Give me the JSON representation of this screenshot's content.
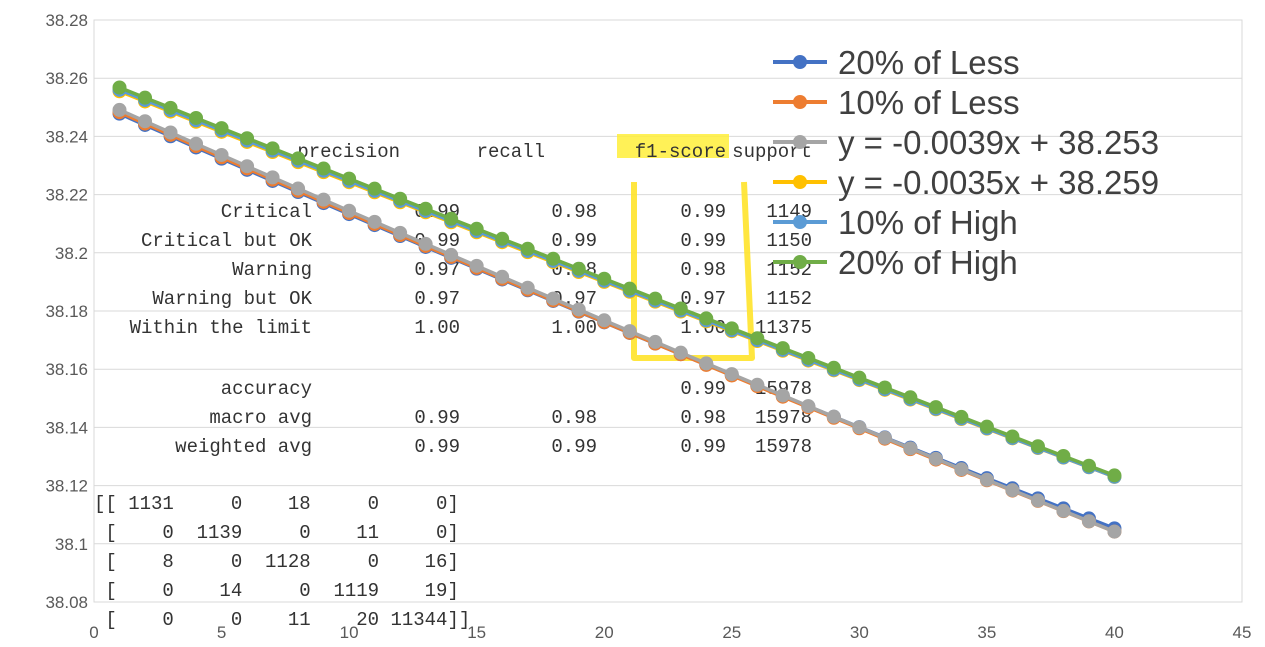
{
  "chart_data": {
    "type": "line",
    "xlim": [
      0,
      45
    ],
    "ylim": [
      38.08,
      38.28
    ],
    "x_ticks": [
      0,
      5,
      10,
      15,
      20,
      25,
      30,
      35,
      40,
      45
    ],
    "y_ticks": [
      38.08,
      38.1,
      38.12,
      38.14,
      38.16,
      38.18,
      38.2,
      38.22,
      38.24,
      38.26,
      38.28
    ],
    "grid": "horizontal",
    "legend_position": "top-right",
    "x": [
      1,
      2,
      3,
      4,
      5,
      6,
      7,
      8,
      9,
      10,
      11,
      12,
      13,
      14,
      15,
      16,
      17,
      18,
      19,
      20,
      21,
      22,
      23,
      24,
      25,
      26,
      27,
      28,
      29,
      30,
      31,
      32,
      33,
      34,
      35,
      36,
      37,
      38,
      39,
      40
    ],
    "series": [
      {
        "name": "20% of Less",
        "color": "#4472C4",
        "intercept": 38.2517,
        "slope": -0.0039,
        "curve": 6e-06
      },
      {
        "name": "10% of Less",
        "color": "#ED7D31",
        "intercept": 38.2522,
        "slope": -0.0039,
        "curve": 5e-06
      },
      {
        "name": "y = -0.0039x + 38.253",
        "color": "#A5A5A5",
        "intercept": 38.253,
        "slope": -0.0039,
        "curve": 4.5e-06
      },
      {
        "name": "y = -0.0035x + 38.259",
        "color": "#FFC000",
        "intercept": 38.259,
        "slope": -0.0035,
        "curve": 2.5e-06
      },
      {
        "name": "10% of High",
        "color": "#5B9BD5",
        "intercept": 38.2595,
        "slope": -0.0035,
        "curve": 2.2e-06
      },
      {
        "name": "20% of High",
        "color": "#70AD47",
        "intercept": 38.2603,
        "slope": -0.0035,
        "curve": 2e-06
      }
    ]
  },
  "report": {
    "header": [
      "precision",
      "recall",
      "f1-score",
      "support"
    ],
    "rows": [
      [
        "Critical",
        "0.99",
        "0.98",
        "0.99",
        "1149"
      ],
      [
        "Critical but OK",
        "0.99",
        "0.99",
        "0.99",
        "1150"
      ],
      [
        "Warning",
        "0.97",
        "0.98",
        "0.98",
        "1152"
      ],
      [
        "Warning but OK",
        "0.97",
        "0.97",
        "0.97",
        "1152"
      ],
      [
        "Within the limit",
        "1.00",
        "1.00",
        "1.00",
        "11375"
      ],
      [
        "accuracy",
        "",
        "",
        "0.99",
        "15978"
      ],
      [
        "macro avg",
        "0.99",
        "0.98",
        "0.98",
        "15978"
      ],
      [
        "weighted avg",
        "0.99",
        "0.99",
        "0.99",
        "15978"
      ]
    ],
    "matrix": [
      "[[ 1131     0    18     0     0]",
      " [    0  1139     0    11     0]",
      " [    8     0  1128     0    16]",
      " [    0    14     0  1119    19]",
      " [    0     0    11    20 11344]]"
    ]
  }
}
